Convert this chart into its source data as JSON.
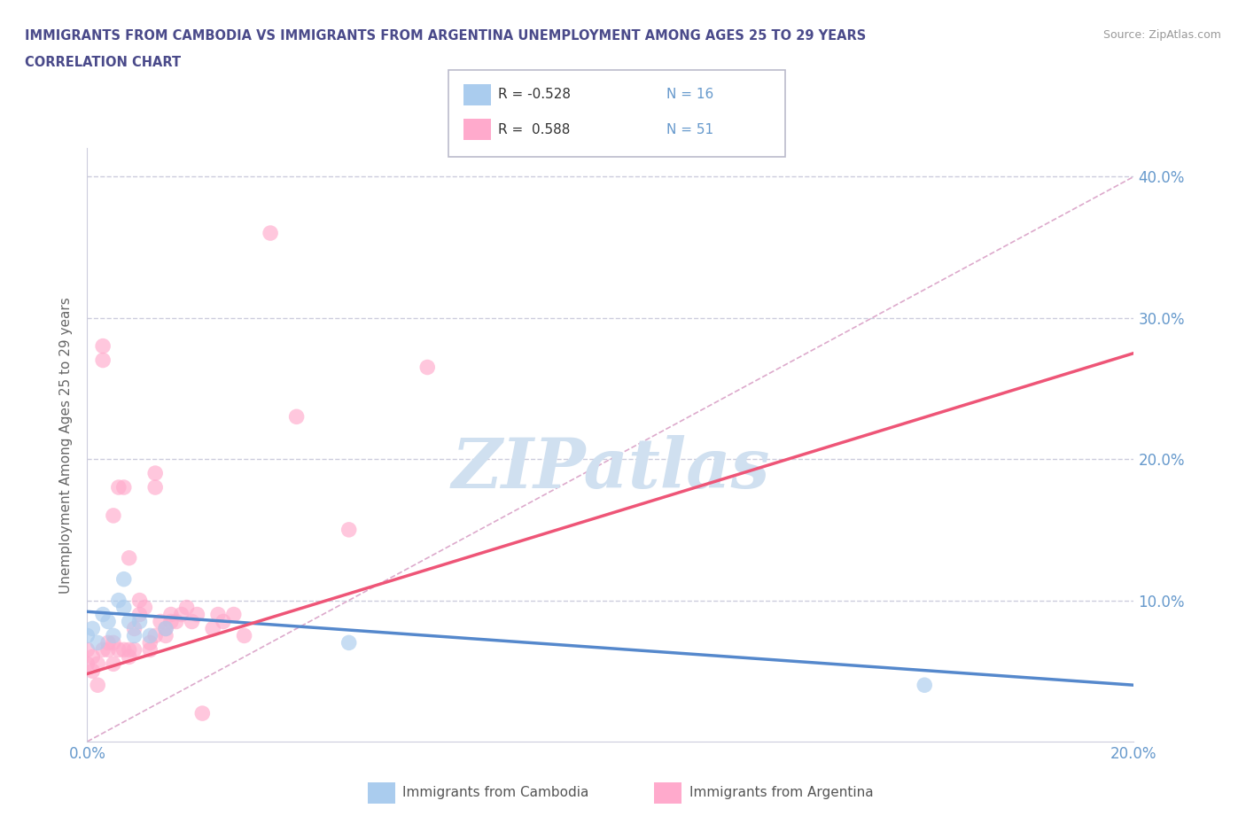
{
  "title_line1": "IMMIGRANTS FROM CAMBODIA VS IMMIGRANTS FROM ARGENTINA UNEMPLOYMENT AMONG AGES 25 TO 29 YEARS",
  "title_line2": "CORRELATION CHART",
  "source_text": "Source: ZipAtlas.com",
  "ylabel": "Unemployment Among Ages 25 to 29 years",
  "xlim": [
    0.0,
    0.2
  ],
  "ylim": [
    0.0,
    0.42
  ],
  "xticks": [
    0.0,
    0.05,
    0.1,
    0.15,
    0.2
  ],
  "yticks": [
    0.0,
    0.1,
    0.2,
    0.3,
    0.4
  ],
  "xticklabels": [
    "0.0%",
    "",
    "",
    "",
    "20.0%"
  ],
  "yticklabels_right": [
    "",
    "10.0%",
    "20.0%",
    "30.0%",
    "40.0%"
  ],
  "title_color": "#4a4a8a",
  "tick_color": "#6699cc",
  "grid_color": "#ccccdd",
  "watermark_text": "ZIPatlas",
  "watermark_color": "#d0e0f0",
  "legend_R1": "R = -0.528",
  "legend_N1": "N = 16",
  "legend_R2": "R =  0.588",
  "legend_N2": "N = 51",
  "cambodia_color": "#aaccee",
  "argentina_color": "#ffaacc",
  "cambodia_line_color": "#5588cc",
  "argentina_line_color": "#ee5577",
  "legend1_label": "Immigrants from Cambodia",
  "legend2_label": "Immigrants from Argentina",
  "cambodia_scatter_x": [
    0.0,
    0.001,
    0.002,
    0.003,
    0.004,
    0.005,
    0.006,
    0.007,
    0.007,
    0.008,
    0.009,
    0.01,
    0.012,
    0.015,
    0.05,
    0.16
  ],
  "cambodia_scatter_y": [
    0.075,
    0.08,
    0.07,
    0.09,
    0.085,
    0.075,
    0.1,
    0.095,
    0.115,
    0.085,
    0.075,
    0.085,
    0.075,
    0.08,
    0.07,
    0.04
  ],
  "argentina_scatter_x": [
    0.0,
    0.0,
    0.001,
    0.001,
    0.002,
    0.002,
    0.003,
    0.003,
    0.003,
    0.004,
    0.004,
    0.005,
    0.005,
    0.005,
    0.006,
    0.006,
    0.007,
    0.007,
    0.008,
    0.008,
    0.008,
    0.009,
    0.009,
    0.01,
    0.01,
    0.011,
    0.012,
    0.012,
    0.013,
    0.013,
    0.013,
    0.014,
    0.015,
    0.015,
    0.016,
    0.016,
    0.017,
    0.018,
    0.019,
    0.02,
    0.021,
    0.022,
    0.024,
    0.025,
    0.026,
    0.028,
    0.03,
    0.035,
    0.04,
    0.05,
    0.065
  ],
  "argentina_scatter_y": [
    0.055,
    0.065,
    0.06,
    0.05,
    0.055,
    0.04,
    0.28,
    0.27,
    0.065,
    0.065,
    0.07,
    0.055,
    0.07,
    0.16,
    0.065,
    0.18,
    0.065,
    0.18,
    0.06,
    0.13,
    0.065,
    0.065,
    0.08,
    0.09,
    0.1,
    0.095,
    0.065,
    0.07,
    0.18,
    0.19,
    0.075,
    0.085,
    0.075,
    0.08,
    0.085,
    0.09,
    0.085,
    0.09,
    0.095,
    0.085,
    0.09,
    0.02,
    0.08,
    0.09,
    0.085,
    0.09,
    0.075,
    0.36,
    0.23,
    0.15,
    0.265
  ],
  "diagonal_line_x": [
    0.0,
    0.2
  ],
  "diagonal_line_y": [
    0.0,
    0.4
  ],
  "cambodia_trend_x": [
    0.0,
    0.2
  ],
  "cambodia_trend_y": [
    0.092,
    0.04
  ],
  "argentina_trend_x": [
    0.0,
    0.2
  ],
  "argentina_trend_y": [
    0.048,
    0.275
  ]
}
